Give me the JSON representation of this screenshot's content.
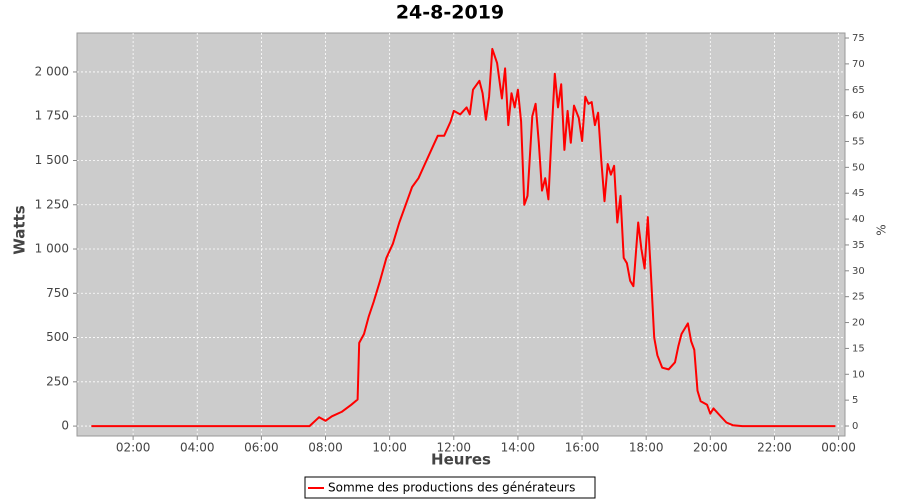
{
  "chart_data": {
    "type": "line",
    "title": "24-8-2019",
    "x_label": "Heures",
    "y_label": "Watts",
    "y2_label": "%",
    "xlim": [
      0.25,
      24.2
    ],
    "xticks": [
      {
        "value": 2,
        "label": "02:00"
      },
      {
        "value": 4,
        "label": "04:00"
      },
      {
        "value": 6,
        "label": "06:00"
      },
      {
        "value": 8,
        "label": "08:00"
      },
      {
        "value": 10,
        "label": "10:00"
      },
      {
        "value": 12,
        "label": "12:00"
      },
      {
        "value": 14,
        "label": "14:00"
      },
      {
        "value": 16,
        "label": "16:00"
      },
      {
        "value": 18,
        "label": "18:00"
      },
      {
        "value": 20,
        "label": "20:00"
      },
      {
        "value": 22,
        "label": "22:00"
      },
      {
        "value": 24,
        "label": "00:00"
      }
    ],
    "ylim": [
      -56,
      2220
    ],
    "yticks": [
      0,
      250,
      500,
      750,
      {
        "value": 1000,
        "label": "1 000"
      },
      {
        "value": 1250,
        "label": "1 250"
      },
      {
        "value": 1500,
        "label": "1 500"
      },
      {
        "value": 1750,
        "label": "1 750"
      },
      {
        "value": 2000,
        "label": "2 000"
      }
    ],
    "y2lim": [
      -1.93,
      75.97
    ],
    "y2ticks": [
      0,
      5,
      10,
      15,
      20,
      25,
      30,
      35,
      40,
      45,
      50,
      55,
      60,
      65,
      70,
      75
    ],
    "grid": true,
    "background": "#cccccc",
    "legend": "bottom",
    "x": [
      0.7,
      7.5,
      7.8,
      8.0,
      8.2,
      8.5,
      8.8,
      9.0,
      9.05,
      9.2,
      9.35,
      9.5,
      9.7,
      9.9,
      10.1,
      10.3,
      10.5,
      10.7,
      10.9,
      11.1,
      11.3,
      11.5,
      11.7,
      11.9,
      12.0,
      12.2,
      12.4,
      12.5,
      12.6,
      12.8,
      12.9,
      13.0,
      13.1,
      13.2,
      13.35,
      13.5,
      13.6,
      13.7,
      13.8,
      13.9,
      14.0,
      14.1,
      14.2,
      14.3,
      14.45,
      14.55,
      14.65,
      14.75,
      14.85,
      14.95,
      15.05,
      15.15,
      15.25,
      15.35,
      15.45,
      15.55,
      15.65,
      15.75,
      15.9,
      16.0,
      16.1,
      16.2,
      16.3,
      16.4,
      16.5,
      16.6,
      16.7,
      16.8,
      16.9,
      17.0,
      17.1,
      17.2,
      17.3,
      17.4,
      17.5,
      17.6,
      17.75,
      17.85,
      17.95,
      18.05,
      18.15,
      18.25,
      18.35,
      18.5,
      18.7,
      18.9,
      19.0,
      19.1,
      19.3,
      19.4,
      19.5,
      19.6,
      19.7,
      19.9,
      20.0,
      20.1,
      20.3,
      20.5,
      20.7,
      21.0,
      23.9
    ],
    "series": [
      {
        "name": "Somme des productions des  générateurs",
        "color": "#ff0000",
        "values": [
          0,
          0,
          50,
          30,
          55,
          80,
          120,
          150,
          470,
          520,
          620,
          700,
          820,
          950,
          1030,
          1150,
          1250,
          1350,
          1400,
          1480,
          1560,
          1640,
          1640,
          1720,
          1780,
          1760,
          1800,
          1760,
          1900,
          1950,
          1880,
          1730,
          1860,
          2130,
          2050,
          1850,
          2020,
          1700,
          1880,
          1800,
          1900,
          1720,
          1250,
          1300,
          1750,
          1820,
          1600,
          1330,
          1400,
          1280,
          1650,
          1990,
          1800,
          1930,
          1560,
          1780,
          1600,
          1810,
          1740,
          1610,
          1860,
          1820,
          1830,
          1700,
          1770,
          1500,
          1270,
          1480,
          1420,
          1470,
          1150,
          1300,
          950,
          920,
          820,
          790,
          1150,
          1000,
          890,
          1180,
          850,
          500,
          400,
          330,
          320,
          360,
          450,
          520,
          580,
          480,
          430,
          200,
          140,
          120,
          70,
          100,
          60,
          20,
          5,
          0,
          0
        ]
      }
    ]
  }
}
